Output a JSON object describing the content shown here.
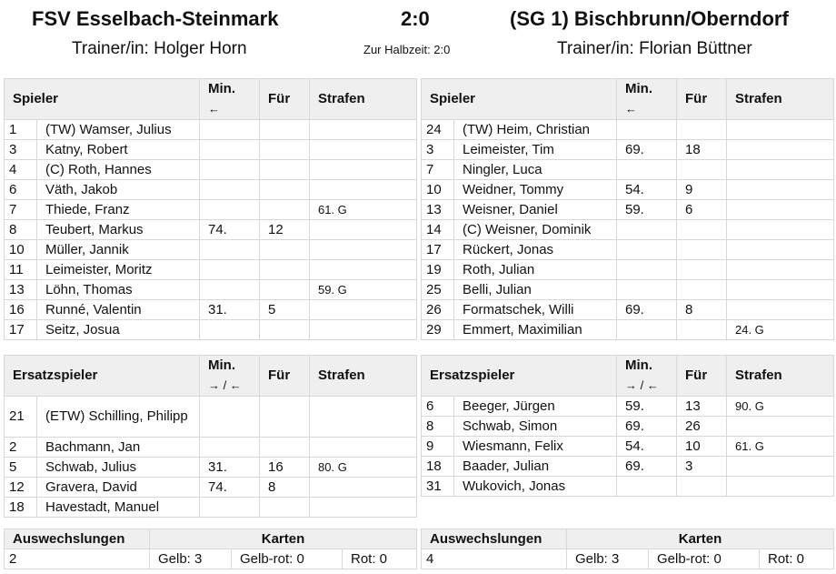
{
  "header": {
    "home_team": "FSV Esselbach-Steinmark",
    "score": "2:0",
    "away_team": "(SG 1) Bischbrunn/Oberndorf",
    "home_trainer": "Trainer/in: Holger Horn",
    "halftime": "Zur Halbzeit: 2:0",
    "away_trainer": "Trainer/in: Florian Büttner"
  },
  "starters_headers": {
    "player": "Spieler",
    "min": "Min.",
    "min_arrow": "←",
    "for": "Für",
    "penalties": "Strafen"
  },
  "subs_headers": {
    "player": "Ersatzspieler",
    "min": "Min.",
    "min_arrow": "→ / ←",
    "for": "Für",
    "penalties": "Strafen"
  },
  "summary_headers": {
    "subs": "Auswechslungen",
    "cards": "Karten"
  },
  "home": {
    "starters": [
      {
        "num": "1",
        "name": "(TW) Wamser, Julius",
        "min": "",
        "for": "",
        "pen": ""
      },
      {
        "num": "3",
        "name": "Katny, Robert",
        "min": "",
        "for": "",
        "pen": ""
      },
      {
        "num": "4",
        "name": "(C) Roth, Hannes",
        "min": "",
        "for": "",
        "pen": ""
      },
      {
        "num": "6",
        "name": "Väth, Jakob",
        "min": "",
        "for": "",
        "pen": ""
      },
      {
        "num": "7",
        "name": "Thiede, Franz",
        "min": "",
        "for": "",
        "pen": "61. G"
      },
      {
        "num": "8",
        "name": "Teubert, Markus",
        "min": "74.",
        "for": "12",
        "pen": ""
      },
      {
        "num": "10",
        "name": "Müller, Jannik",
        "min": "",
        "for": "",
        "pen": ""
      },
      {
        "num": "11",
        "name": "Leimeister, Moritz",
        "min": "",
        "for": "",
        "pen": ""
      },
      {
        "num": "13",
        "name": "Löhn, Thomas",
        "min": "",
        "for": "",
        "pen": "59. G"
      },
      {
        "num": "16",
        "name": "Runné, Valentin",
        "min": "31.",
        "for": "5",
        "pen": ""
      },
      {
        "num": "17",
        "name": "Seitz, Josua",
        "min": "",
        "for": "",
        "pen": ""
      }
    ],
    "subs": [
      {
        "num": "21",
        "name": "(ETW) Schilling, Philipp",
        "min": "",
        "for": "",
        "pen": ""
      },
      {
        "num": "2",
        "name": "Bachmann, Jan",
        "min": "",
        "for": "",
        "pen": ""
      },
      {
        "num": "5",
        "name": "Schwab, Julius",
        "min": "31.",
        "for": "16",
        "pen": "80. G"
      },
      {
        "num": "12",
        "name": "Gravera, David",
        "min": "74.",
        "for": "8",
        "pen": ""
      },
      {
        "num": "18",
        "name": "Havestadt, Manuel",
        "min": "",
        "for": "",
        "pen": ""
      }
    ],
    "summary": {
      "subs": "2",
      "yellow": "Gelb: 3",
      "yellow_red": "Gelb-rot: 0",
      "red": "Rot: 0"
    }
  },
  "away": {
    "starters": [
      {
        "num": "24",
        "name": "(TW) Heim, Christian",
        "min": "",
        "for": "",
        "pen": ""
      },
      {
        "num": "3",
        "name": "Leimeister, Tim",
        "min": "69.",
        "for": "18",
        "pen": ""
      },
      {
        "num": "7",
        "name": "Ningler, Luca",
        "min": "",
        "for": "",
        "pen": ""
      },
      {
        "num": "10",
        "name": "Weidner, Tommy",
        "min": "54.",
        "for": "9",
        "pen": ""
      },
      {
        "num": "13",
        "name": "Weisner, Daniel",
        "min": "59.",
        "for": "6",
        "pen": ""
      },
      {
        "num": "14",
        "name": "(C) Weisner, Dominik",
        "min": "",
        "for": "",
        "pen": ""
      },
      {
        "num": "17",
        "name": "Rückert, Jonas",
        "min": "",
        "for": "",
        "pen": ""
      },
      {
        "num": "19",
        "name": "Roth, Julian",
        "min": "",
        "for": "",
        "pen": ""
      },
      {
        "num": "25",
        "name": "Belli, Julian",
        "min": "",
        "for": "",
        "pen": ""
      },
      {
        "num": "26",
        "name": "Formatschek, Willi",
        "min": "69.",
        "for": "8",
        "pen": ""
      },
      {
        "num": "29",
        "name": "Emmert, Maximilian",
        "min": "",
        "for": "",
        "pen": "24. G"
      }
    ],
    "subs": [
      {
        "num": "6",
        "name": "Beeger, Jürgen",
        "min": "59.",
        "for": "13",
        "pen": "90. G"
      },
      {
        "num": "8",
        "name": "Schwab, Simon",
        "min": "69.",
        "for": "26",
        "pen": ""
      },
      {
        "num": "9",
        "name": "Wiesmann, Felix",
        "min": "54.",
        "for": "10",
        "pen": "61. G"
      },
      {
        "num": "18",
        "name": "Baader, Julian",
        "min": "69.",
        "for": "3",
        "pen": ""
      },
      {
        "num": "31",
        "name": "Wukovich, Jonas",
        "min": "",
        "for": "",
        "pen": ""
      }
    ],
    "summary": {
      "subs": "4",
      "yellow": "Gelb: 3",
      "yellow_red": "Gelb-rot: 0",
      "red": "Rot: 0"
    }
  }
}
